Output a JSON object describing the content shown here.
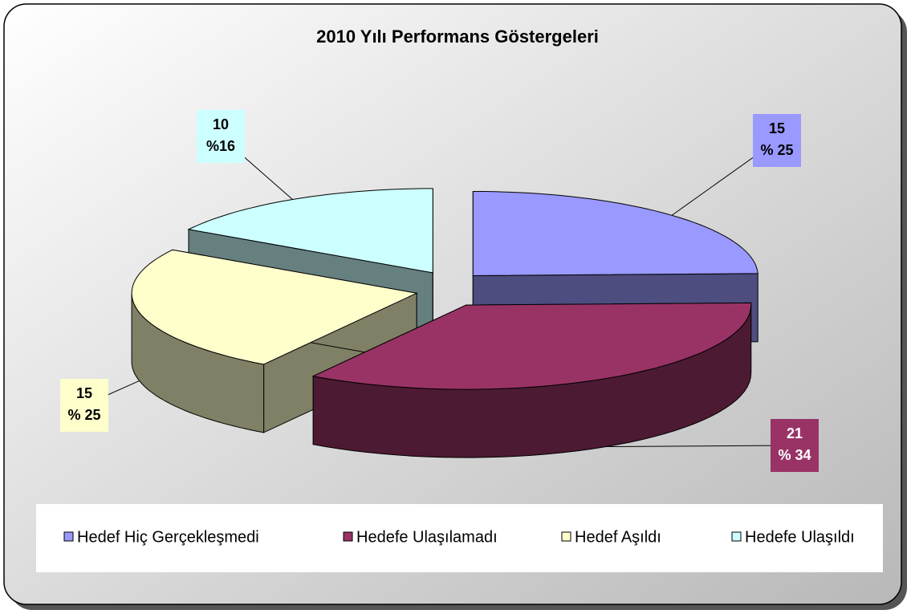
{
  "chart_data": {
    "type": "pie3d",
    "title": "2010 Yılı Performans Göstergeleri",
    "categories": [
      "Hedef Hiç Gerçekleşmedi",
      "Hedefe Ulaşılamadı",
      "Hedef Aşıldı",
      "Hedefe Ulaşıldı"
    ],
    "values": [
      15,
      21,
      15,
      10
    ],
    "percent_labels": [
      "% 25",
      "% 34",
      "% 25",
      "%16"
    ],
    "colors": [
      "#9999ff",
      "#993366",
      "#ffffcc",
      "#ccffff"
    ],
    "side_colors": [
      "#4d4d80",
      "#4d1a33",
      "#808066",
      "#668080"
    ],
    "legend": "bottom"
  }
}
